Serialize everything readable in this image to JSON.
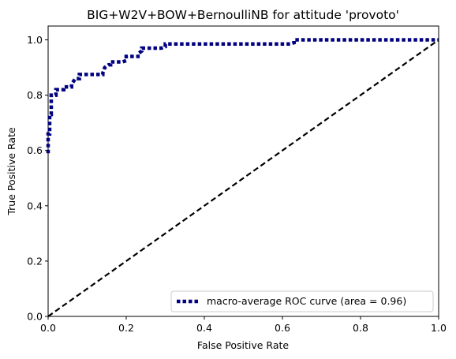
{
  "chart_data": {
    "type": "line",
    "title": "BIG+W2V+BOW+BernoulliNB for attitude 'provoto'",
    "xlabel": "False Positive Rate",
    "ylabel": "True Positive Rate",
    "xlim": [
      0.0,
      1.0
    ],
    "ylim": [
      0.0,
      1.05
    ],
    "xticks": [
      "0.0",
      "0.2",
      "0.4",
      "0.6",
      "0.8",
      "1.0"
    ],
    "yticks": [
      "0.0",
      "0.2",
      "0.4",
      "0.6",
      "0.8",
      "1.0"
    ],
    "grid": false,
    "legend_position": "lower-right",
    "series": [
      {
        "name": "macro-average ROC curve (area = 0.96)",
        "color": "#000080",
        "style": "dotted",
        "x": [
          0.0,
          0.0,
          0.004,
          0.004,
          0.008,
          0.008,
          0.02,
          0.02,
          0.04,
          0.04,
          0.06,
          0.06,
          0.07,
          0.08,
          0.08,
          0.14,
          0.14,
          0.145,
          0.155,
          0.16,
          0.16,
          0.19,
          0.2,
          0.2,
          0.23,
          0.23,
          0.24,
          0.24,
          0.29,
          0.3,
          0.3,
          0.62,
          0.63,
          0.63,
          1.0
        ],
        "y": [
          0.59,
          0.66,
          0.66,
          0.73,
          0.73,
          0.8,
          0.8,
          0.82,
          0.82,
          0.83,
          0.83,
          0.84,
          0.86,
          0.86,
          0.875,
          0.875,
          0.88,
          0.9,
          0.91,
          0.91,
          0.92,
          0.92,
          0.925,
          0.94,
          0.94,
          0.95,
          0.96,
          0.97,
          0.97,
          0.975,
          0.985,
          0.985,
          0.99,
          1.0,
          1.0
        ]
      },
      {
        "name": "",
        "color": "#000000",
        "style": "dashed",
        "x": [
          0.0,
          1.0
        ],
        "y": [
          0.0,
          1.0
        ]
      }
    ],
    "legend": [
      {
        "label": "macro-average ROC curve (area = 0.96)",
        "color": "#000080",
        "style": "dotted"
      }
    ]
  }
}
